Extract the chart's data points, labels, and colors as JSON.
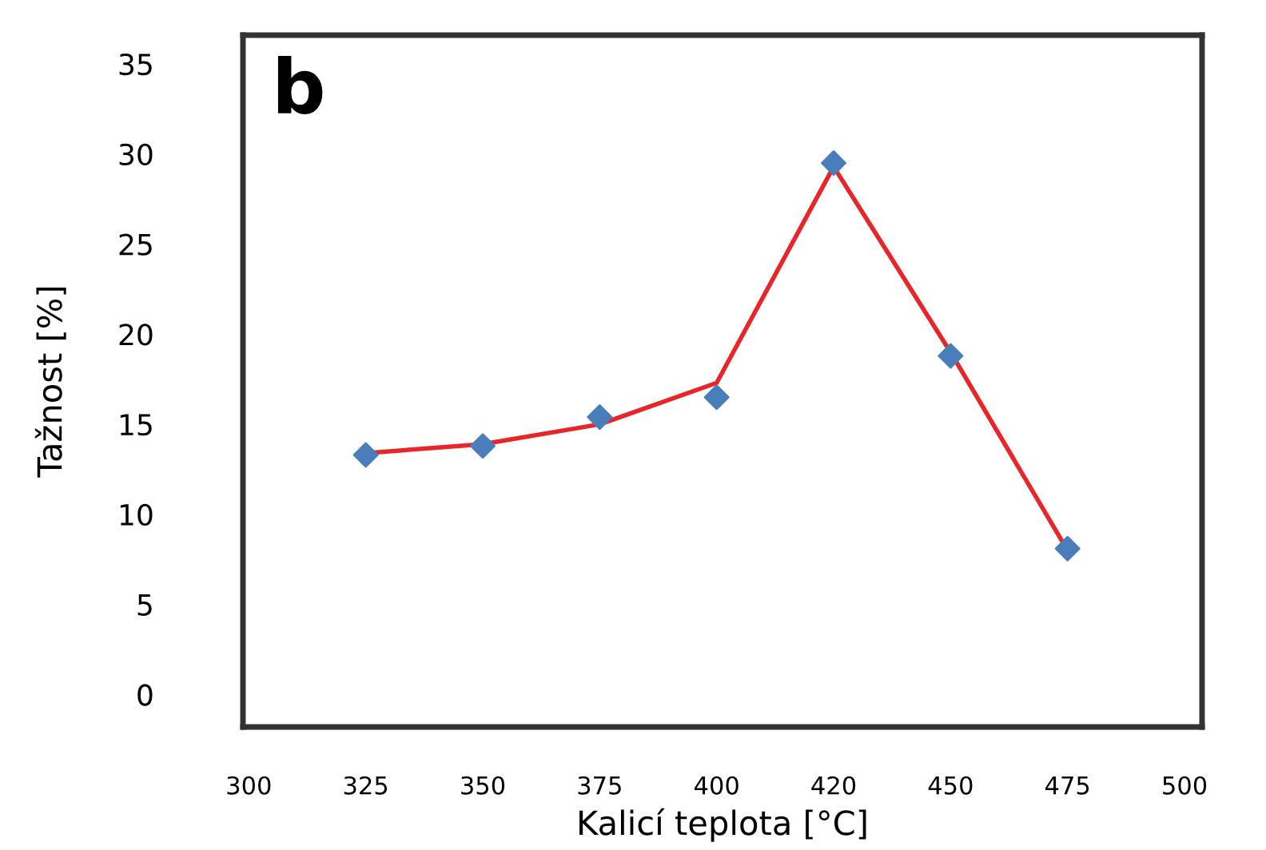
{
  "chart_data": {
    "type": "scatter",
    "xlabel": "Kalicí teplota [°C]",
    "ylabel": "Tažnost [%]",
    "annotations": [
      "b"
    ],
    "categories": [
      "300",
      "325",
      "350",
      "375",
      "400",
      "420",
      "450",
      "475",
      "500"
    ],
    "ylim": [
      -1.8,
      36.6
    ],
    "yticks": [
      0,
      5,
      10,
      15,
      20,
      25,
      30,
      35
    ],
    "grid": false,
    "legend": false,
    "series": [
      {
        "color": "#4a7ebb",
        "marker": "diamond",
        "values": [
          null,
          13.3,
          13.8,
          15.4,
          16.5,
          29.5,
          18.8,
          8.1,
          null
        ]
      },
      {
        "type": "line",
        "color": "#e8262a",
        "marker": "none",
        "line_style": "solid",
        "values": [
          null,
          13.4,
          13.9,
          15.0,
          17.3,
          29.3,
          19.0,
          8.0,
          null
        ]
      }
    ]
  }
}
